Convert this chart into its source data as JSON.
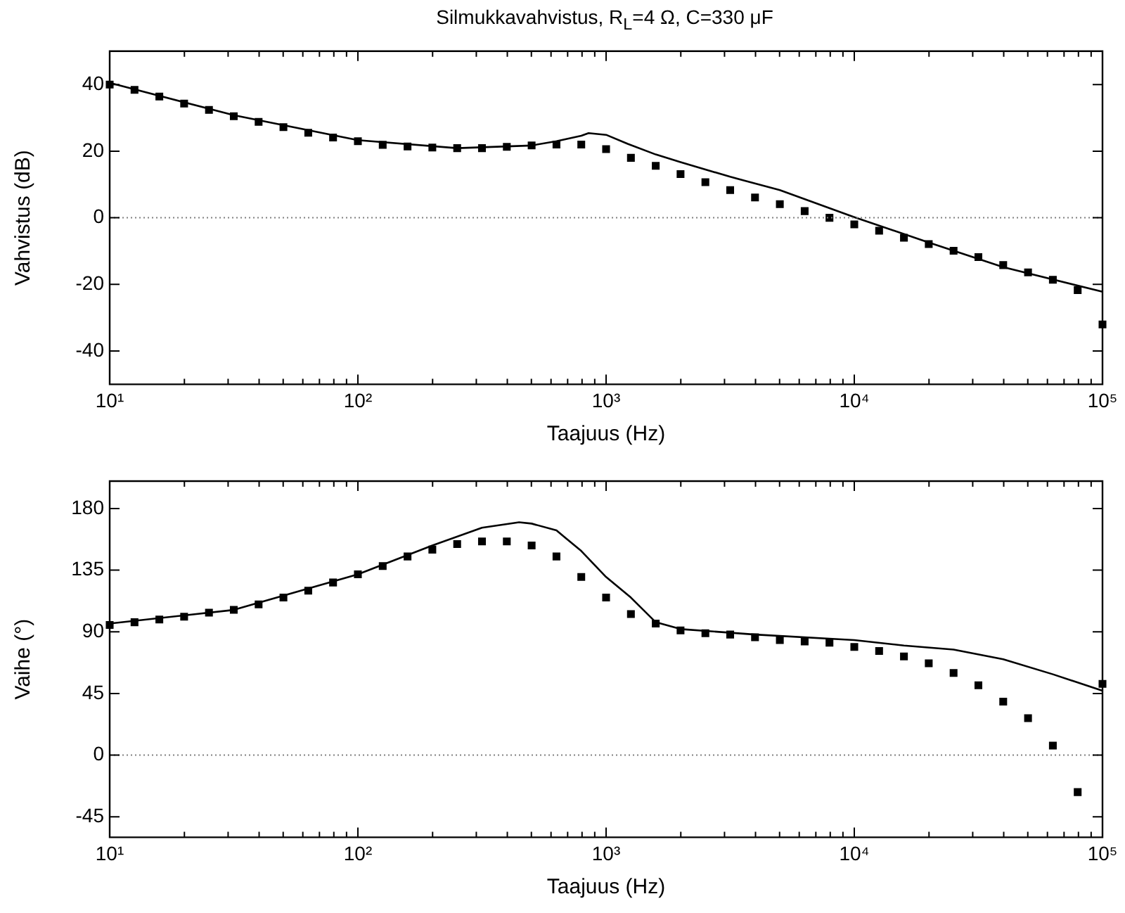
{
  "chart_data": [
    {
      "type": "scatter",
      "title": "Silmukkavahvistus, R$_{L}$=4 Ω, C=330 μF",
      "xlabel": "Taajuus (Hz)",
      "ylabel": "Vahvistus (dB)",
      "log": "x",
      "xlim": [
        10,
        100000
      ],
      "ylim": [
        -50,
        50
      ],
      "xticks": [
        {
          "value": 10,
          "label": "10¹"
        },
        {
          "value": 20,
          "label": null
        },
        {
          "value": 30,
          "label": null
        },
        {
          "value": 40,
          "label": null
        },
        {
          "value": 50,
          "label": null
        },
        {
          "value": 60,
          "label": null
        },
        {
          "value": 70,
          "label": null
        },
        {
          "value": 80,
          "label": null
        },
        {
          "value": 90,
          "label": null
        },
        {
          "value": 100,
          "label": "10²"
        },
        {
          "value": 200,
          "label": null
        },
        {
          "value": 300,
          "label": null
        },
        {
          "value": 400,
          "label": null
        },
        {
          "value": 500,
          "label": null
        },
        {
          "value": 600,
          "label": null
        },
        {
          "value": 700,
          "label": null
        },
        {
          "value": 800,
          "label": null
        },
        {
          "value": 900,
          "label": null
        },
        {
          "value": 1000,
          "label": "10³"
        },
        {
          "value": 2000,
          "label": null
        },
        {
          "value": 3000,
          "label": null
        },
        {
          "value": 4000,
          "label": null
        },
        {
          "value": 5000,
          "label": null
        },
        {
          "value": 6000,
          "label": null
        },
        {
          "value": 7000,
          "label": null
        },
        {
          "value": 8000,
          "label": null
        },
        {
          "value": 9000,
          "label": null
        },
        {
          "value": 10000,
          "label": "10⁴"
        },
        {
          "value": 20000,
          "label": null
        },
        {
          "value": 30000,
          "label": null
        },
        {
          "value": 40000,
          "label": null
        },
        {
          "value": 50000,
          "label": null
        },
        {
          "value": 60000,
          "label": null
        },
        {
          "value": 70000,
          "label": null
        },
        {
          "value": 80000,
          "label": null
        },
        {
          "value": 90000,
          "label": null
        },
        {
          "value": 100000,
          "label": "10⁵"
        }
      ],
      "yticks": [
        -40,
        -20,
        0,
        20,
        40
      ],
      "ref_lines": [
        {
          "axis": "y",
          "value": 0,
          "color": "#808080",
          "line_style": "dotted"
        }
      ],
      "series": [
        {
          "color": "#000000",
          "marker": "square",
          "x": [
            10,
            12.59,
            15.85,
            19.95,
            25.12,
            31.62,
            39.81,
            50.12,
            63.1,
            79.43,
            100,
            125.9,
            158.5,
            199.5,
            251.2,
            316.2,
            398.1,
            501.2,
            631,
            794.3,
            1000,
            1259,
            1585,
            1995,
            2512,
            3162,
            3981,
            5012,
            6310,
            7943,
            10000,
            12590,
            15850,
            19950,
            25120,
            31620,
            39810,
            50120,
            63100,
            79430,
            100000
          ],
          "values": [
            40,
            38.4,
            36.4,
            34.3,
            32.4,
            30.5,
            28.8,
            27.2,
            25.5,
            24.1,
            23,
            21.9,
            21.4,
            21.1,
            20.9,
            20.9,
            21.3,
            21.7,
            22,
            22,
            20.6,
            18,
            15.6,
            13.1,
            10.7,
            8.3,
            6.1,
            4.1,
            2,
            0,
            -2,
            -3.9,
            -6,
            -7.9,
            -9.9,
            -11.8,
            -14.2,
            -16.4,
            -18.6,
            -21.7,
            -32
          ]
        },
        {
          "type": "line",
          "color": "#000000",
          "marker": "none",
          "line_style": "solid",
          "x": [
            10,
            31.62,
            100,
            251.2,
            501.2,
            631,
            794.3,
            850,
            1000,
            1222,
            1585,
            1995,
            3162,
            5012,
            10000,
            19950,
            39810,
            100000
          ],
          "values": [
            40.5,
            30.8,
            23.3,
            20.9,
            21.7,
            23,
            24.6,
            25.4,
            24.9,
            22.2,
            19,
            16.7,
            12.3,
            8.3,
            0.2,
            -7.4,
            -14.8,
            -22.2
          ]
        }
      ]
    },
    {
      "type": "scatter",
      "xlabel": "Taajuus (Hz)",
      "ylabel": "Vaihe (°)",
      "log": "x",
      "xlim": [
        10,
        100000
      ],
      "ylim": [
        -60,
        200
      ],
      "xticks": [
        {
          "value": 10,
          "label": "10¹"
        },
        {
          "value": 20,
          "label": null
        },
        {
          "value": 30,
          "label": null
        },
        {
          "value": 40,
          "label": null
        },
        {
          "value": 50,
          "label": null
        },
        {
          "value": 60,
          "label": null
        },
        {
          "value": 70,
          "label": null
        },
        {
          "value": 80,
          "label": null
        },
        {
          "value": 90,
          "label": null
        },
        {
          "value": 100,
          "label": "10²"
        },
        {
          "value": 200,
          "label": null
        },
        {
          "value": 300,
          "label": null
        },
        {
          "value": 400,
          "label": null
        },
        {
          "value": 500,
          "label": null
        },
        {
          "value": 600,
          "label": null
        },
        {
          "value": 700,
          "label": null
        },
        {
          "value": 800,
          "label": null
        },
        {
          "value": 900,
          "label": null
        },
        {
          "value": 1000,
          "label": "10³"
        },
        {
          "value": 2000,
          "label": null
        },
        {
          "value": 3000,
          "label": null
        },
        {
          "value": 4000,
          "label": null
        },
        {
          "value": 5000,
          "label": null
        },
        {
          "value": 6000,
          "label": null
        },
        {
          "value": 7000,
          "label": null
        },
        {
          "value": 8000,
          "label": null
        },
        {
          "value": 9000,
          "label": null
        },
        {
          "value": 10000,
          "label": "10⁴"
        },
        {
          "value": 20000,
          "label": null
        },
        {
          "value": 30000,
          "label": null
        },
        {
          "value": 40000,
          "label": null
        },
        {
          "value": 50000,
          "label": null
        },
        {
          "value": 60000,
          "label": null
        },
        {
          "value": 70000,
          "label": null
        },
        {
          "value": 80000,
          "label": null
        },
        {
          "value": 90000,
          "label": null
        },
        {
          "value": 100000,
          "label": "10⁵"
        }
      ],
      "yticks": [
        -45,
        0,
        45,
        90,
        135,
        180
      ],
      "ref_lines": [
        {
          "axis": "y",
          "value": 0,
          "color": "#808080",
          "line_style": "dotted"
        }
      ],
      "series": [
        {
          "color": "#000000",
          "marker": "square",
          "x": [
            10,
            12.59,
            15.85,
            19.95,
            25.12,
            31.62,
            39.81,
            50.12,
            63.1,
            79.43,
            100,
            125.9,
            158.5,
            199.5,
            251.2,
            316.2,
            398.1,
            501.2,
            631,
            794.3,
            1000,
            1259,
            1585,
            1995,
            2512,
            3162,
            3981,
            5012,
            6310,
            7943,
            10000,
            12590,
            15850,
            19950,
            25120,
            31620,
            39810,
            50120,
            63100,
            79430,
            100000
          ],
          "values": [
            95,
            97,
            99,
            101,
            104,
            106,
            110,
            115,
            120,
            126,
            132,
            138,
            145,
            150,
            154,
            156,
            156,
            153,
            145,
            130,
            115,
            103,
            96,
            91,
            89,
            88,
            86,
            84,
            83,
            82,
            79,
            76,
            72,
            67,
            60,
            51,
            39,
            27,
            7,
            -27,
            52
          ]
        },
        {
          "type": "line",
          "color": "#000000",
          "marker": "none",
          "line_style": "solid",
          "x": [
            10,
            31.62,
            100,
            199.5,
            316.2,
            446,
            501.2,
            631,
            794.3,
            1000,
            1259,
            1585,
            1995,
            3981,
            10000,
            15850,
            25120,
            39810,
            63100,
            100000
          ],
          "values": [
            96,
            106,
            132,
            153,
            166,
            170,
            169,
            164,
            149,
            130,
            115,
            97,
            92,
            88,
            84,
            80,
            77,
            70,
            59,
            47
          ]
        }
      ]
    }
  ]
}
